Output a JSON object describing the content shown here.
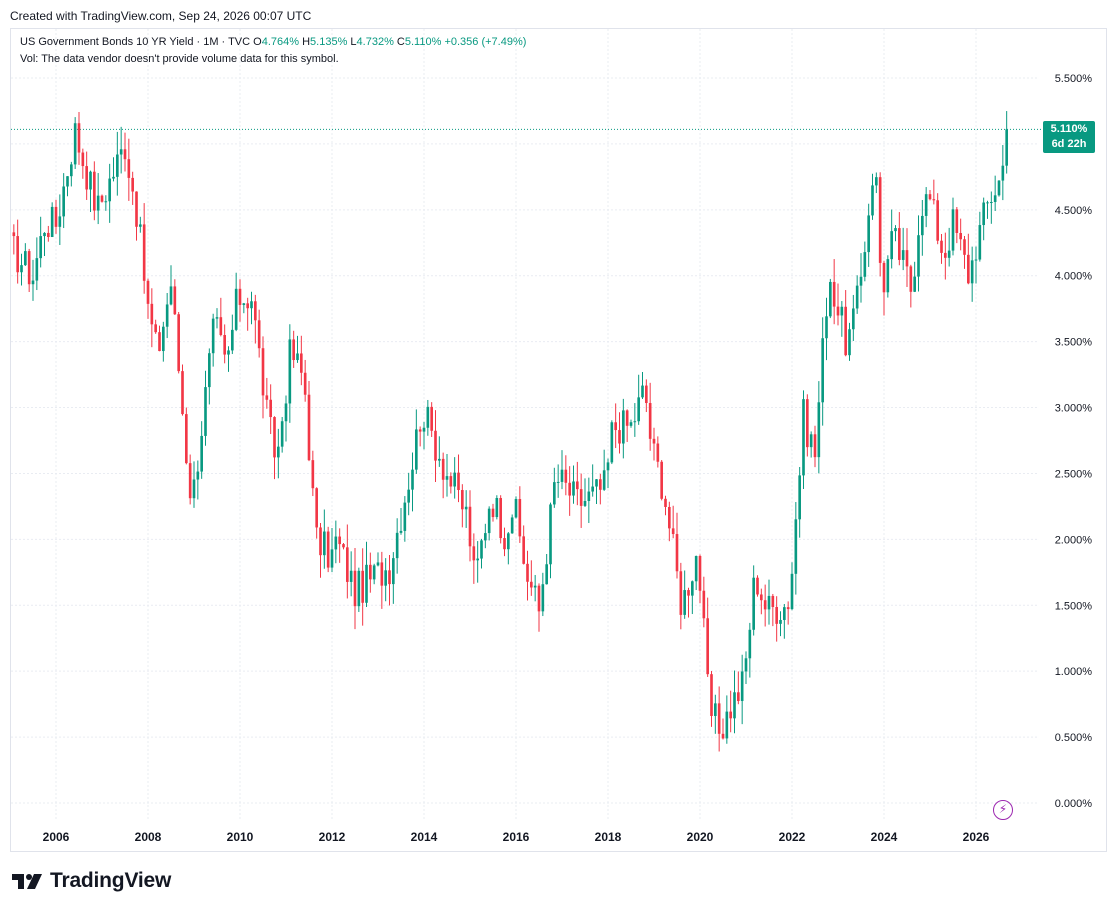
{
  "header": {
    "created": "Created with TradingView.com, Sep 24, 2026 00:07 UTC"
  },
  "legend": {
    "title": "US Government Bonds 10 YR Yield · 1M · TVC",
    "o_label": "O",
    "o_value": "4.764%",
    "h_label": "H",
    "h_value": "5.135%",
    "l_label": "L",
    "l_value": "4.732%",
    "c_label": "C",
    "c_value": "5.110%",
    "change": "+0.356 (+7.49%)",
    "vol_note": "Vol: The data vendor doesn't provide volume data for this symbol."
  },
  "badge": {
    "price": "5.110%",
    "countdown": "6d 22h"
  },
  "footer": {
    "brand": "TradingView"
  },
  "colors": {
    "up": "#089981",
    "down": "#f23645",
    "grid": "#e9ecf2",
    "badge": "#089981"
  },
  "chart_data": {
    "type": "candlestick",
    "interval": "1M",
    "y_axis": {
      "ticks": [
        "0.000%",
        "0.500%",
        "1.000%",
        "1.500%",
        "2.000%",
        "2.500%",
        "3.000%",
        "3.500%",
        "4.000%",
        "4.500%",
        "5.000%",
        "5.500%"
      ],
      "range": [
        0,
        5.5
      ],
      "position": "right"
    },
    "x_axis": {
      "ticks": [
        "2006",
        "2008",
        "2010",
        "2012",
        "2014",
        "2016",
        "2018",
        "2020",
        "2022",
        "2024",
        "2026"
      ],
      "range": [
        2005.0,
        2026.75
      ]
    },
    "grid": true,
    "last_price_line": 5.11,
    "monthly_close_path": [
      [
        2005.0,
        4.22
      ],
      [
        2005.5,
        4.0
      ],
      [
        2005.75,
        4.4
      ],
      [
        2006.0,
        4.4
      ],
      [
        2006.42,
        5.1
      ],
      [
        2006.5,
        4.99
      ],
      [
        2006.9,
        4.5
      ],
      [
        2007.5,
        5.0
      ],
      [
        2007.75,
        4.5
      ],
      [
        2008.0,
        3.75
      ],
      [
        2008.2,
        3.4
      ],
      [
        2008.5,
        3.95
      ],
      [
        2008.9,
        2.4
      ],
      [
        2009.0,
        2.4
      ],
      [
        2009.45,
        3.65
      ],
      [
        2009.7,
        3.3
      ],
      [
        2009.95,
        3.84
      ],
      [
        2010.25,
        3.85
      ],
      [
        2010.6,
        2.9
      ],
      [
        2010.8,
        2.6
      ],
      [
        2011.1,
        3.44
      ],
      [
        2011.4,
        3.2
      ],
      [
        2011.65,
        2.0
      ],
      [
        2011.9,
        1.9
      ],
      [
        2012.0,
        1.88
      ],
      [
        2012.1,
        2.0
      ],
      [
        2012.5,
        1.6
      ],
      [
        2012.9,
        1.72
      ],
      [
        2013.25,
        1.8
      ],
      [
        2013.75,
        2.6
      ],
      [
        2013.95,
        3.0
      ],
      [
        2014.5,
        2.5
      ],
      [
        2014.95,
        2.17
      ],
      [
        2015.1,
        1.68
      ],
      [
        2015.45,
        2.35
      ],
      [
        2015.75,
        2.06
      ],
      [
        2015.95,
        2.27
      ],
      [
        2016.2,
        1.78
      ],
      [
        2016.5,
        1.46
      ],
      [
        2016.85,
        2.45
      ],
      [
        2016.95,
        2.45
      ],
      [
        2017.35,
        2.28
      ],
      [
        2017.7,
        2.34
      ],
      [
        2017.95,
        2.41
      ],
      [
        2018.1,
        2.86
      ],
      [
        2018.5,
        2.86
      ],
      [
        2018.8,
        3.15
      ],
      [
        2018.95,
        2.69
      ],
      [
        2019.2,
        2.41
      ],
      [
        2019.6,
        1.5
      ],
      [
        2019.95,
        1.92
      ],
      [
        2020.2,
        0.7
      ],
      [
        2020.45,
        0.55
      ],
      [
        2020.65,
        0.72
      ],
      [
        2020.95,
        0.92
      ],
      [
        2021.2,
        1.74
      ],
      [
        2021.45,
        1.47
      ],
      [
        2021.9,
        1.51
      ],
      [
        2022.0,
        1.78
      ],
      [
        2022.25,
        2.93
      ],
      [
        2022.5,
        2.65
      ],
      [
        2022.8,
        4.05
      ],
      [
        2022.9,
        3.88
      ],
      [
        2023.2,
        3.47
      ],
      [
        2023.45,
        3.84
      ],
      [
        2023.8,
        4.93
      ],
      [
        2023.95,
        3.88
      ],
      [
        2024.2,
        4.3
      ],
      [
        2024.6,
        3.9
      ],
      [
        2024.8,
        4.57
      ],
      [
        2025.0,
        4.57
      ],
      [
        2025.3,
        4.16
      ],
      [
        2025.5,
        4.4
      ],
      [
        2025.85,
        4.0
      ],
      [
        2026.0,
        4.24
      ],
      [
        2026.3,
        4.6
      ],
      [
        2026.55,
        4.75
      ],
      [
        2026.7,
        5.11
      ]
    ]
  }
}
